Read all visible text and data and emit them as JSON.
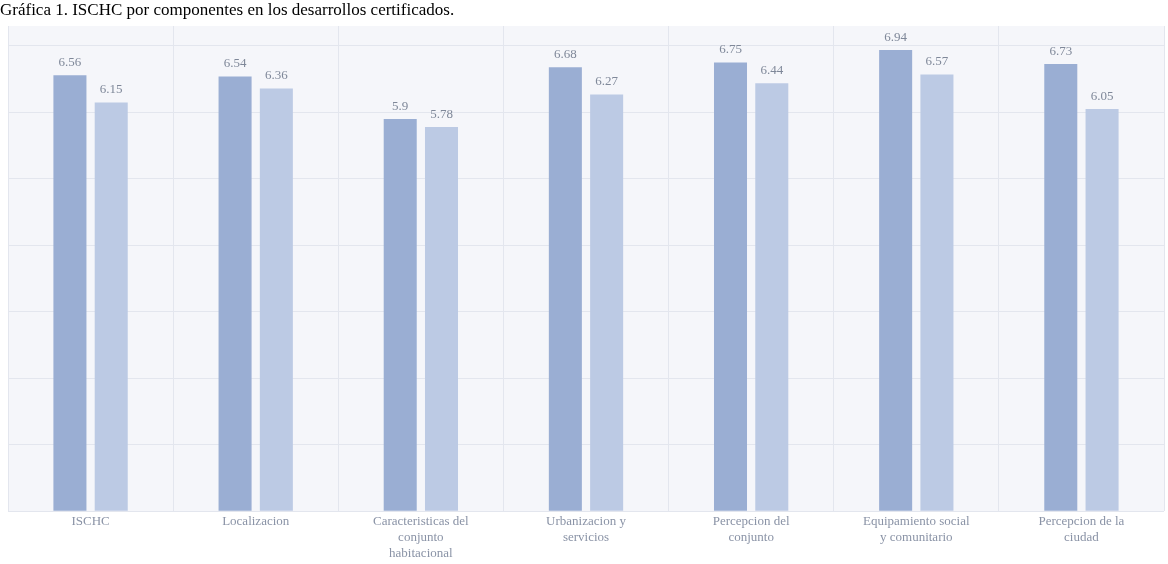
{
  "chart_data": {
    "type": "bar",
    "title": "Gráfica 1. ISCHC por componentes en los desarrollos certificados.",
    "categories": [
      "ISCHC",
      "Localizacion",
      "Caracteristicas del conjunto habitacional",
      "Urbanizacion y servicios",
      "Percepcion del conjunto",
      "Equipamiento social y comunitario",
      "Percepcion de la ciudad"
    ],
    "series": [
      {
        "color": "#9aaed3",
        "values": [
          6.56,
          6.54,
          5.9,
          6.68,
          6.75,
          6.94,
          6.73
        ]
      },
      {
        "color": "#bccae4",
        "values": [
          6.15,
          6.36,
          5.78,
          6.27,
          6.44,
          6.57,
          6.05
        ]
      }
    ],
    "ylim": [
      0,
      7.3
    ],
    "yticks": [
      {
        "value": 0,
        "label": null
      },
      {
        "value": 1,
        "label": null
      },
      {
        "value": 2,
        "label": null
      },
      {
        "value": 3,
        "label": null
      },
      {
        "value": 4,
        "label": null
      },
      {
        "value": 5,
        "label": null
      },
      {
        "value": 6,
        "label": null
      },
      {
        "value": 7,
        "label": null
      }
    ],
    "tick_labels": "x",
    "grid": true,
    "legend": false,
    "data_labels": true
  }
}
